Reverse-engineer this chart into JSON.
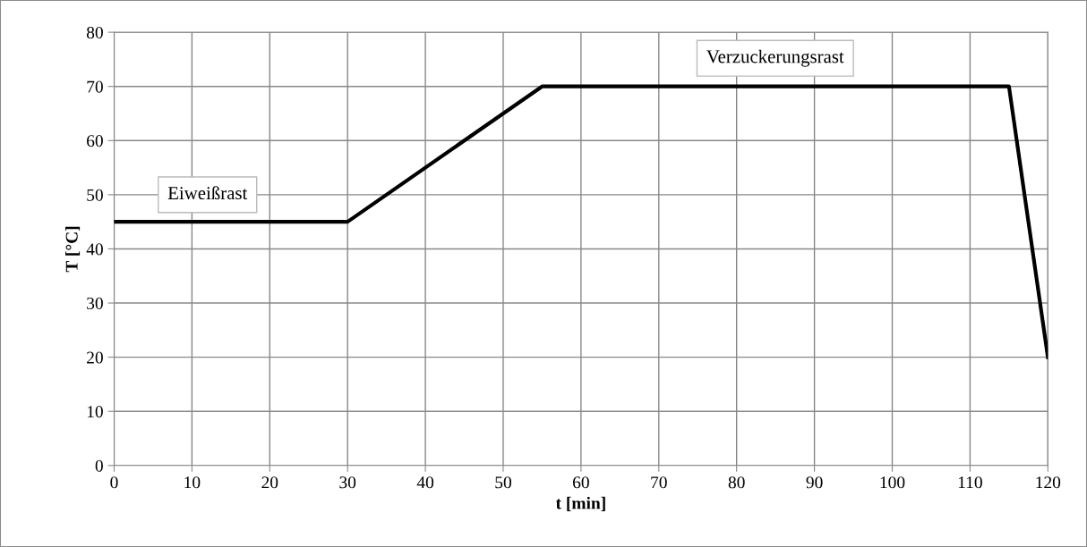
{
  "chart_data": {
    "type": "line",
    "xlabel": "t [min]",
    "ylabel": "T [°C]",
    "x": [
      0,
      30,
      55,
      115,
      120
    ],
    "series": [
      {
        "color": "#000000",
        "values": [
          45,
          45,
          70,
          70,
          20
        ]
      }
    ],
    "xlim": [
      0,
      120
    ],
    "xticks": [
      0,
      10,
      20,
      30,
      40,
      50,
      60,
      70,
      80,
      90,
      100,
      110,
      120
    ],
    "ylim": [
      0,
      80
    ],
    "yticks": [
      0,
      10,
      20,
      30,
      40,
      50,
      60,
      70,
      80
    ],
    "grid": true,
    "marker": "none",
    "line_style": "solid",
    "annotations": [
      "Eiweißrast",
      "Verzuckerungsrast"
    ]
  }
}
